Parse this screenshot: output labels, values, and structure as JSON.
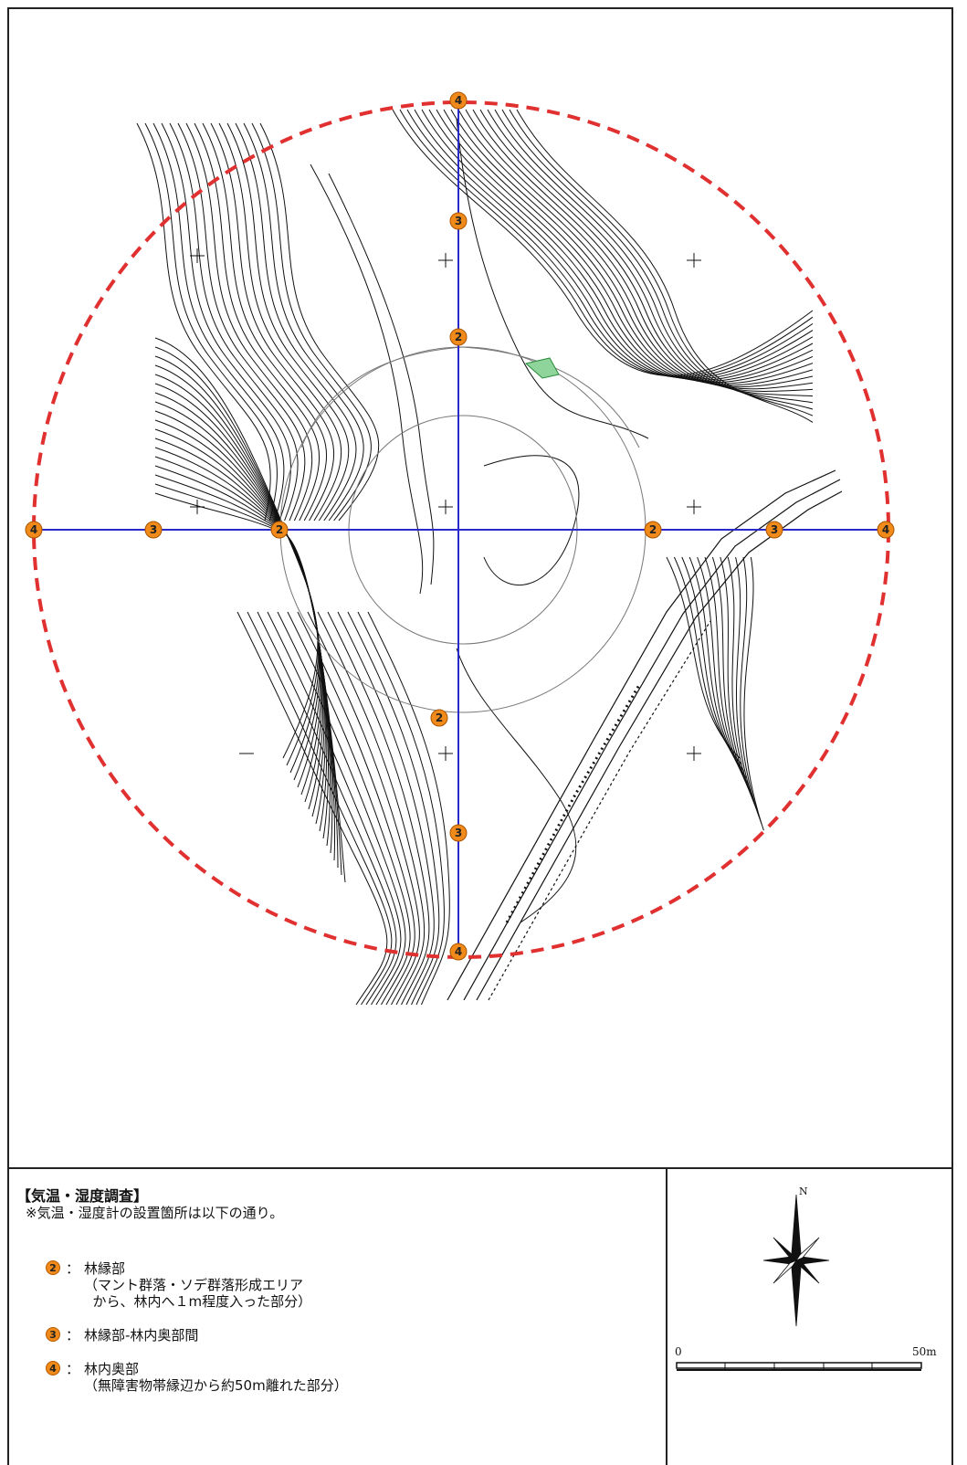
{
  "legend": {
    "title": "【気温・湿度調査】",
    "note": "※気温・湿度計の設置箇所は以下の通り。",
    "items": [
      {
        "badge": "2",
        "label": "林縁部",
        "desc": "（マント群落・ソデ群落形成エリア\n  から、林内へ１m程度入った部分）"
      },
      {
        "badge": "3",
        "label": "林縁部-林内奥部間",
        "desc": ""
      },
      {
        "badge": "4",
        "label": "林内奥部",
        "desc": "（無障害物帯縁辺から約50m離れた部分）"
      }
    ]
  },
  "compass": {
    "north_label": "N"
  },
  "scale_bar": {
    "start_label": "0",
    "end_label": "50m"
  },
  "map": {
    "markers": [
      {
        "label": "4"
      },
      {
        "label": "3"
      },
      {
        "label": "2"
      },
      {
        "label": "4"
      },
      {
        "label": "3"
      },
      {
        "label": "2"
      },
      {
        "label": "4"
      },
      {
        "label": "3"
      },
      {
        "label": "2"
      },
      {
        "label": "4"
      },
      {
        "label": "3"
      },
      {
        "label": "2"
      }
    ],
    "colors": {
      "circle": "#e03030",
      "transect": "#2a2acc",
      "marker": "#f08a1a",
      "contour": "#111111"
    }
  }
}
